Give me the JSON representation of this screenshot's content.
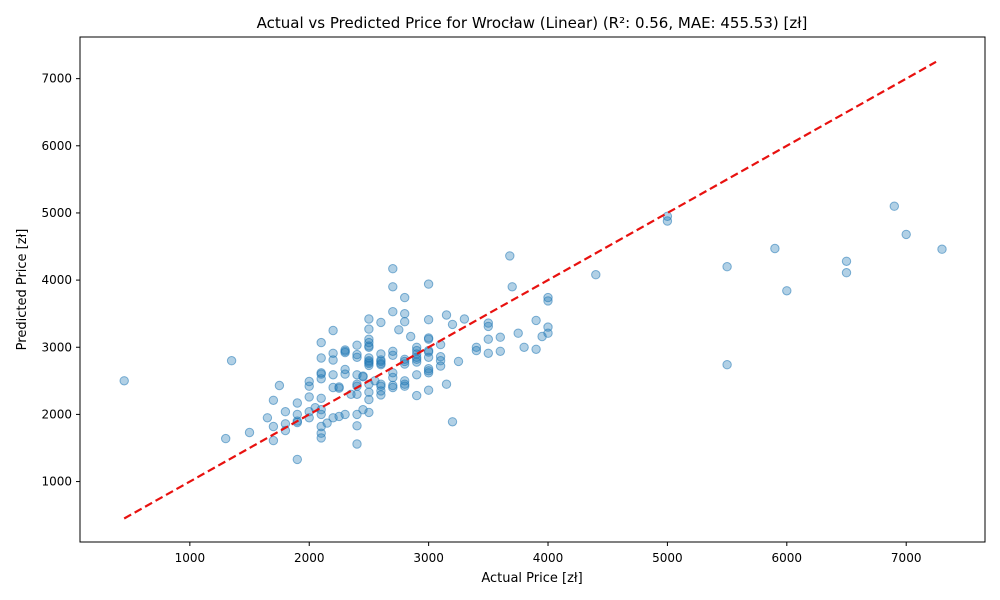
{
  "chart_data": {
    "type": "scatter",
    "title": "Actual vs Predicted Price for Wrocław (Linear) (R²: 0.56, MAE: 455.53) [zł]",
    "xlabel": "Actual Price [zł]",
    "ylabel": "Predicted Price [zł]",
    "xlim": [
      80,
      7660
    ],
    "ylim": [
      100,
      7620
    ],
    "xticks": [
      1000,
      2000,
      3000,
      4000,
      5000,
      6000,
      7000
    ],
    "yticks": [
      1000,
      2000,
      3000,
      4000,
      5000,
      6000,
      7000
    ],
    "grid": false,
    "point_color": "#1f77b4",
    "line_color": "#e8110f",
    "reference_line": {
      "x": [
        450,
        7250
      ],
      "y": [
        450,
        7250
      ],
      "style": "dashed"
    },
    "points": [
      [
        450,
        2500
      ],
      [
        1350,
        2800
      ],
      [
        1300,
        1640
      ],
      [
        1500,
        1730
      ],
      [
        1650,
        1950
      ],
      [
        1700,
        1610
      ],
      [
        1700,
        1820
      ],
      [
        1700,
        2210
      ],
      [
        1750,
        2430
      ],
      [
        1800,
        1760
      ],
      [
        1800,
        1860
      ],
      [
        1800,
        2040
      ],
      [
        1900,
        1330
      ],
      [
        1900,
        1880
      ],
      [
        1900,
        1900
      ],
      [
        1900,
        2000
      ],
      [
        1900,
        2170
      ],
      [
        2000,
        1950
      ],
      [
        2000,
        2040
      ],
      [
        2000,
        2260
      ],
      [
        2000,
        2420
      ],
      [
        2000,
        2490
      ],
      [
        2050,
        2100
      ],
      [
        2100,
        1650
      ],
      [
        2100,
        1720
      ],
      [
        2100,
        1820
      ],
      [
        2100,
        2000
      ],
      [
        2100,
        2070
      ],
      [
        2100,
        2240
      ],
      [
        2100,
        2530
      ],
      [
        2100,
        2600
      ],
      [
        2100,
        2620
      ],
      [
        2100,
        2840
      ],
      [
        2100,
        3070
      ],
      [
        2150,
        1870
      ],
      [
        2200,
        1950
      ],
      [
        2200,
        2400
      ],
      [
        2200,
        2590
      ],
      [
        2200,
        2810
      ],
      [
        2200,
        2910
      ],
      [
        2200,
        3250
      ],
      [
        2250,
        1970
      ],
      [
        2250,
        2390
      ],
      [
        2250,
        2410
      ],
      [
        2300,
        2000
      ],
      [
        2300,
        2600
      ],
      [
        2300,
        2670
      ],
      [
        2300,
        2920
      ],
      [
        2300,
        2940
      ],
      [
        2300,
        2960
      ],
      [
        2350,
        2300
      ],
      [
        2400,
        1560
      ],
      [
        2400,
        1830
      ],
      [
        2400,
        2000
      ],
      [
        2400,
        2300
      ],
      [
        2400,
        2420
      ],
      [
        2400,
        2450
      ],
      [
        2400,
        2590
      ],
      [
        2400,
        2850
      ],
      [
        2400,
        2890
      ],
      [
        2400,
        3030
      ],
      [
        2450,
        2070
      ],
      [
        2450,
        2560
      ],
      [
        2450,
        2570
      ],
      [
        2500,
        2030
      ],
      [
        2500,
        2220
      ],
      [
        2500,
        2330
      ],
      [
        2500,
        2450
      ],
      [
        2500,
        2730
      ],
      [
        2500,
        2760
      ],
      [
        2500,
        2780
      ],
      [
        2500,
        2800
      ],
      [
        2500,
        2840
      ],
      [
        2500,
        3000
      ],
      [
        2500,
        3020
      ],
      [
        2500,
        3070
      ],
      [
        2500,
        3120
      ],
      [
        2500,
        3270
      ],
      [
        2500,
        3420
      ],
      [
        2550,
        2500
      ],
      [
        2600,
        2290
      ],
      [
        2600,
        2350
      ],
      [
        2600,
        2420
      ],
      [
        2600,
        2450
      ],
      [
        2600,
        2740
      ],
      [
        2600,
        2760
      ],
      [
        2600,
        2790
      ],
      [
        2600,
        2810
      ],
      [
        2600,
        2900
      ],
      [
        2600,
        3370
      ],
      [
        2700,
        2400
      ],
      [
        2700,
        2430
      ],
      [
        2700,
        2550
      ],
      [
        2700,
        2620
      ],
      [
        2700,
        2880
      ],
      [
        2700,
        2940
      ],
      [
        2700,
        3530
      ],
      [
        2700,
        3900
      ],
      [
        2700,
        4170
      ],
      [
        2750,
        3260
      ],
      [
        2800,
        2420
      ],
      [
        2800,
        2450
      ],
      [
        2800,
        2500
      ],
      [
        2800,
        2750
      ],
      [
        2800,
        2790
      ],
      [
        2800,
        2820
      ],
      [
        2800,
        3380
      ],
      [
        2800,
        3500
      ],
      [
        2800,
        3740
      ],
      [
        2850,
        3160
      ],
      [
        2900,
        2280
      ],
      [
        2900,
        2590
      ],
      [
        2900,
        2780
      ],
      [
        2900,
        2820
      ],
      [
        2900,
        2850
      ],
      [
        2900,
        2900
      ],
      [
        2900,
        2950
      ],
      [
        2900,
        3000
      ],
      [
        3000,
        2360
      ],
      [
        3000,
        2620
      ],
      [
        3000,
        2650
      ],
      [
        3000,
        2680
      ],
      [
        3000,
        2850
      ],
      [
        3000,
        2930
      ],
      [
        3000,
        2950
      ],
      [
        3000,
        3120
      ],
      [
        3000,
        3140
      ],
      [
        3000,
        3410
      ],
      [
        3000,
        3940
      ],
      [
        3100,
        2720
      ],
      [
        3100,
        2800
      ],
      [
        3100,
        2860
      ],
      [
        3100,
        3040
      ],
      [
        3150,
        2450
      ],
      [
        3150,
        3480
      ],
      [
        3200,
        1890
      ],
      [
        3200,
        3340
      ],
      [
        3250,
        2790
      ],
      [
        3300,
        3420
      ],
      [
        3400,
        2950
      ],
      [
        3400,
        3000
      ],
      [
        3500,
        2910
      ],
      [
        3500,
        3120
      ],
      [
        3500,
        3310
      ],
      [
        3500,
        3360
      ],
      [
        3600,
        2940
      ],
      [
        3600,
        3150
      ],
      [
        3680,
        4360
      ],
      [
        3700,
        3900
      ],
      [
        3750,
        3210
      ],
      [
        3800,
        3000
      ],
      [
        3900,
        2970
      ],
      [
        3900,
        3400
      ],
      [
        3950,
        3160
      ],
      [
        4000,
        3210
      ],
      [
        4000,
        3300
      ],
      [
        4000,
        3690
      ],
      [
        4000,
        3740
      ],
      [
        4400,
        4080
      ],
      [
        5000,
        4880
      ],
      [
        5000,
        4950
      ],
      [
        5500,
        2740
      ],
      [
        5500,
        4200
      ],
      [
        5900,
        4470
      ],
      [
        6000,
        3840
      ],
      [
        6500,
        4110
      ],
      [
        6500,
        4280
      ],
      [
        6900,
        5100
      ],
      [
        7000,
        4680
      ],
      [
        7300,
        4460
      ]
    ]
  }
}
